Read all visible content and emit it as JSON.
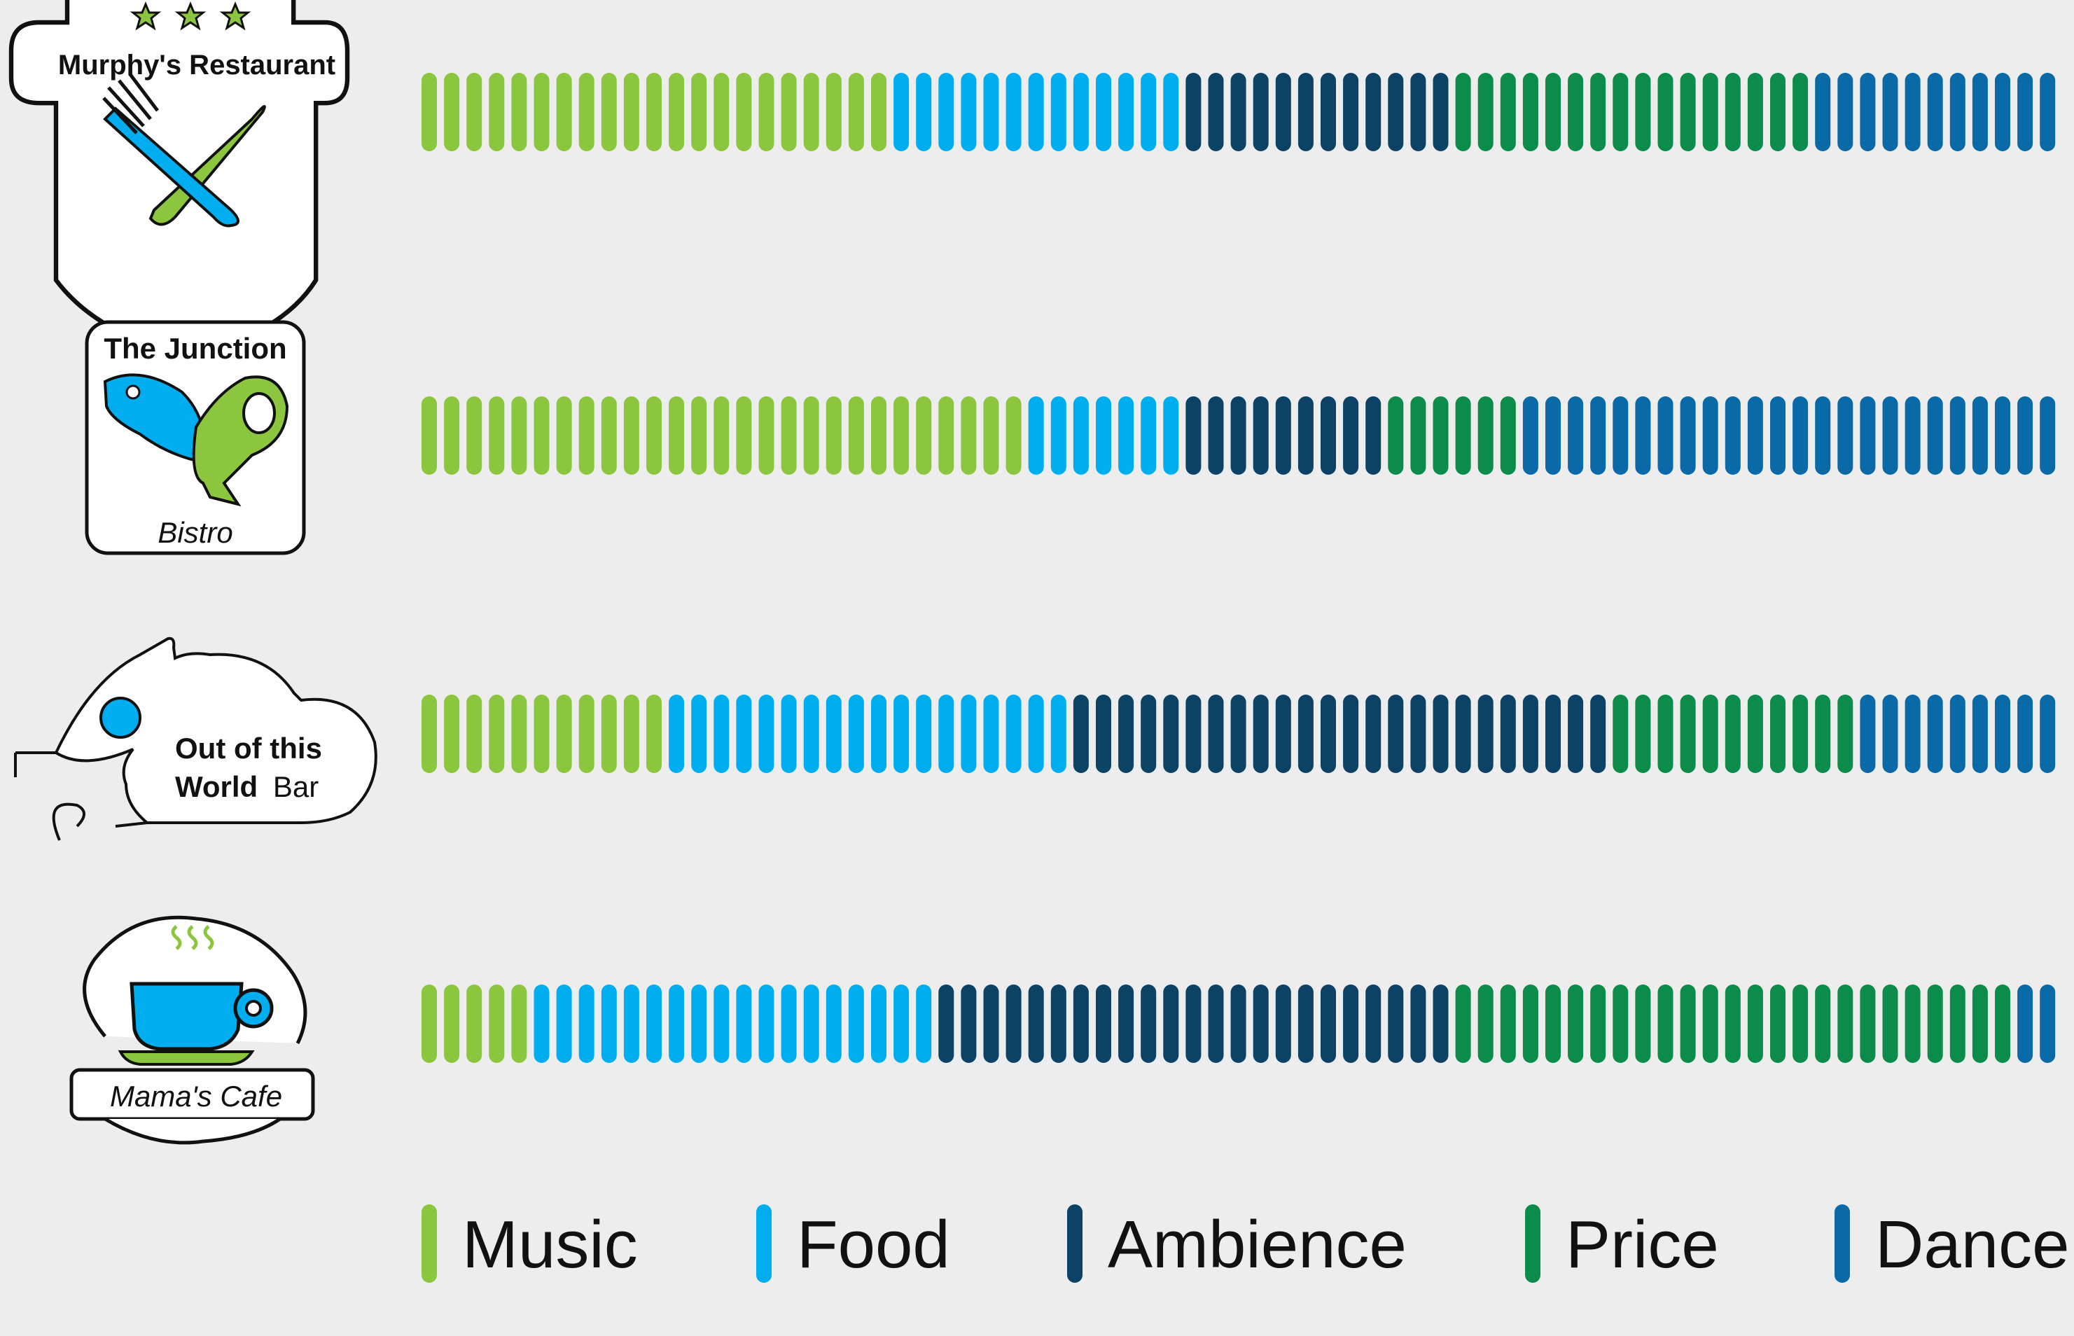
{
  "chart_data": {
    "type": "bar",
    "subtype": "stacked-tally-bars",
    "unit_label": "",
    "series": [
      {
        "name": "Music",
        "color": "#8cc63f"
      },
      {
        "name": "Food",
        "color": "#00aeef"
      },
      {
        "name": "Ambience",
        "color": "#0b4266"
      },
      {
        "name": "Price",
        "color": "#0b8c4a"
      },
      {
        "name": "Dance",
        "color": "#0a6aa8"
      }
    ],
    "rows": [
      {
        "name": "Murphy's Restaurant",
        "values": [
          21,
          13,
          12,
          16,
          12
        ]
      },
      {
        "name": "The Junction",
        "values": [
          27,
          7,
          9,
          6,
          25
        ]
      },
      {
        "name": "Out of this World Bar",
        "values": [
          11,
          18,
          24,
          11,
          10
        ]
      },
      {
        "name": "Mama's Cafe",
        "values": [
          5,
          18,
          23,
          25,
          3
        ]
      }
    ],
    "legend_position": "bottom"
  },
  "logos": {
    "murphys": {
      "name": "Murphy's Restaurant",
      "icon": "fork-knife-icon",
      "stars": "3 stars"
    },
    "junction": {
      "name": "The Junction",
      "subtitle": "Bistro",
      "icon": "fish-and-ham-icon"
    },
    "outofthisworld": {
      "line1": "Out of this",
      "line2_bold": "World",
      "line2_rest": "Bar",
      "icon": "alien-head-icon"
    },
    "mamas": {
      "name": "Mama's Cafe",
      "icon": "coffee-cup-icon"
    }
  },
  "legend": [
    "Music",
    "Food",
    "Ambience",
    "Price",
    "Dance"
  ]
}
